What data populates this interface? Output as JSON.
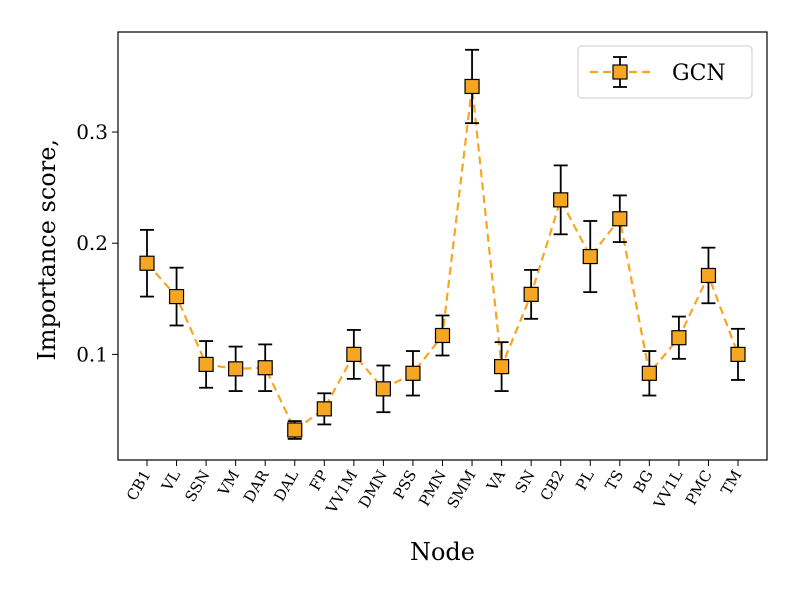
{
  "chart_data": {
    "type": "line",
    "title": "",
    "xlabel": "Node",
    "ylabel": "Importance score, 𝒤",
    "ylim": [
      0.005,
      0.39
    ],
    "yticks": [
      0.1,
      0.2,
      0.3
    ],
    "ytick_labels": [
      "0.1",
      "0.2",
      "0.3"
    ],
    "grid": false,
    "legend": {
      "placement": "top-right"
    },
    "categories": [
      "CB1",
      "VL",
      "SSN",
      "VM",
      "DAR",
      "DAL",
      "FP",
      "VV1M",
      "DMN",
      "PSS",
      "PMN",
      "SMM",
      "VA",
      "SN",
      "CB2",
      "PL",
      "TS",
      "BG",
      "VV1L",
      "PMC",
      "TM"
    ],
    "series": [
      {
        "name": "GCN",
        "color": "#f5a623",
        "marker": "square",
        "linestyle": "dashed",
        "values": [
          0.182,
          0.152,
          0.091,
          0.087,
          0.088,
          0.032,
          0.051,
          0.1,
          0.069,
          0.083,
          0.117,
          0.341,
          0.089,
          0.154,
          0.239,
          0.188,
          0.222,
          0.083,
          0.115,
          0.171,
          0.1
        ],
        "errors": [
          0.03,
          0.026,
          0.021,
          0.02,
          0.021,
          0.008,
          0.014,
          0.022,
          0.021,
          0.02,
          0.018,
          0.033,
          0.022,
          0.022,
          0.031,
          0.032,
          0.021,
          0.02,
          0.019,
          0.025,
          0.023
        ]
      }
    ]
  }
}
